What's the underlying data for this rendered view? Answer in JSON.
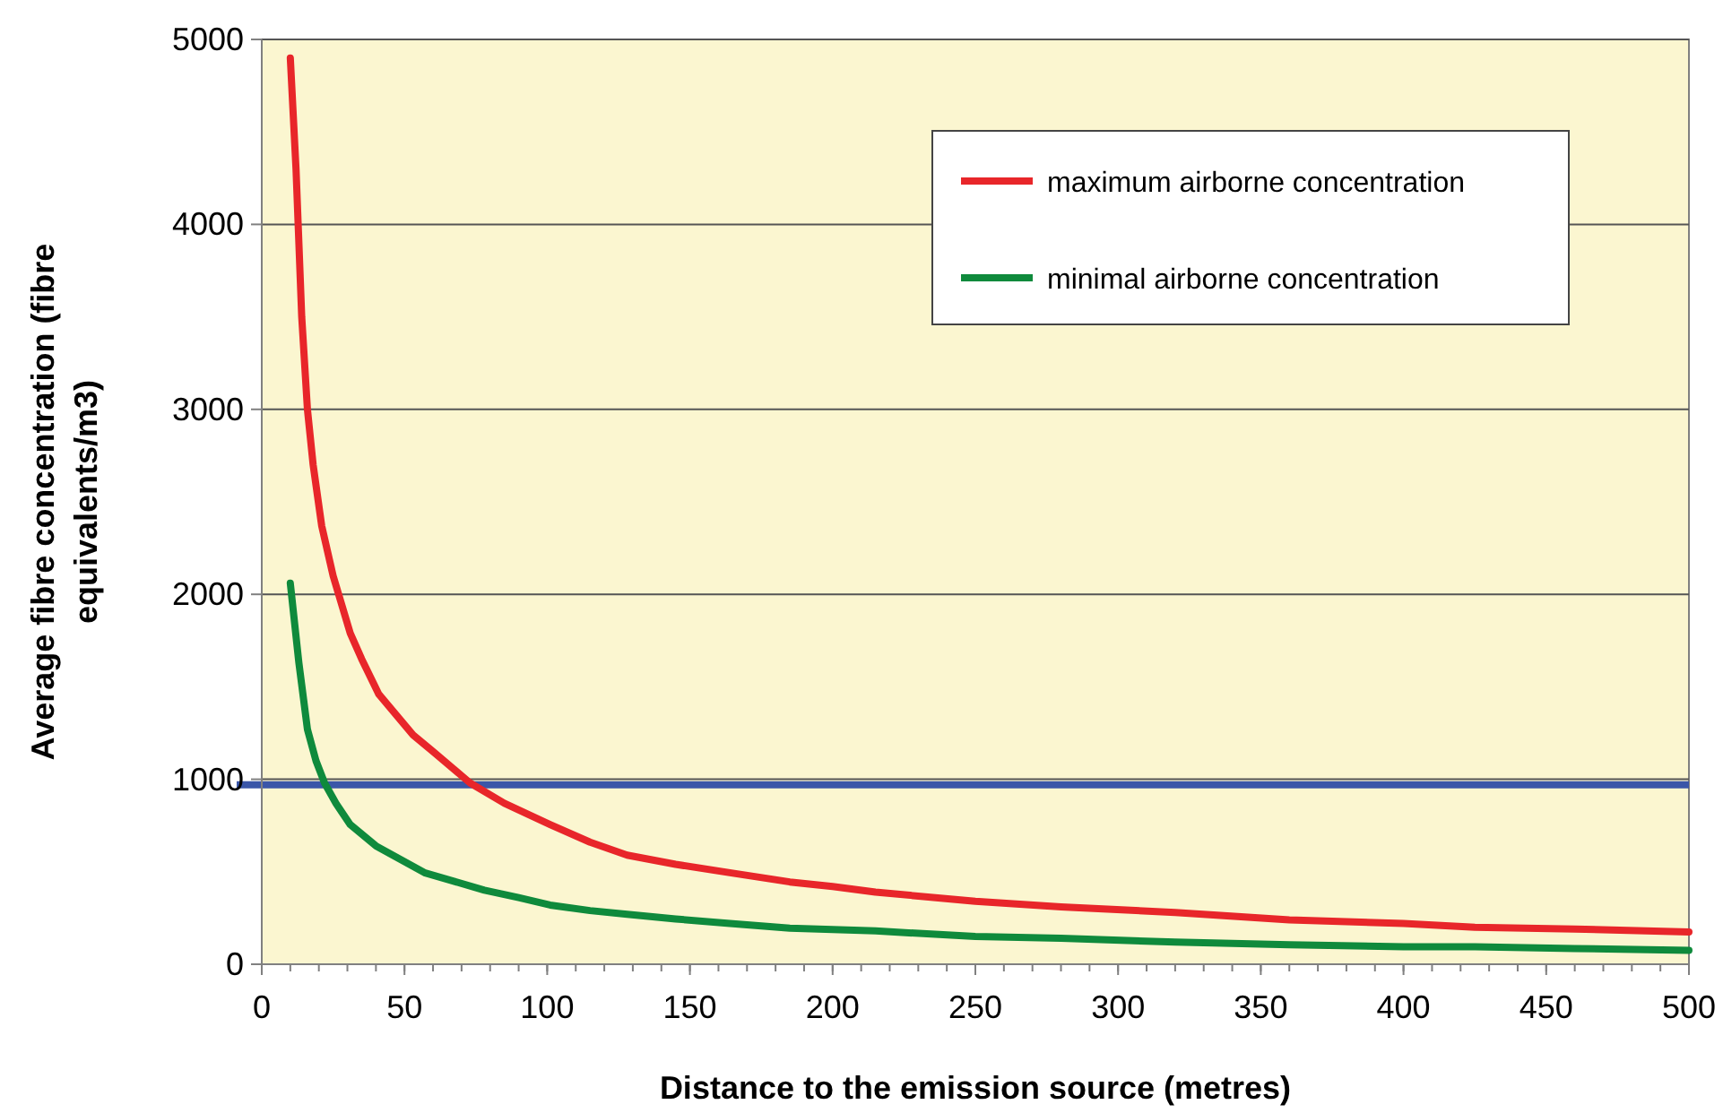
{
  "chart_data": {
    "type": "line",
    "xlabel": "Distance to the emission source (metres)",
    "ylabel": "Average fibre concentration (fibre equivalents/m3)",
    "xlim": [
      0,
      500
    ],
    "xticks": [
      0,
      50,
      100,
      150,
      200,
      250,
      300,
      350,
      400,
      450,
      500
    ],
    "ylim": [
      0,
      5000
    ],
    "yticks": [
      0,
      1000,
      2000,
      3000,
      4000,
      5000
    ],
    "grid": "y",
    "legend": "top right",
    "marker": "none",
    "line_style": "solid",
    "series": [
      {
        "name": "maximum airborne concentration",
        "color": "#e8262a",
        "x": [
          10,
          12,
          14,
          16,
          18,
          21,
          25,
          31,
          35,
          41,
          47,
          53,
          60,
          73,
          85,
          101,
          115,
          128,
          145,
          164,
          185,
          200,
          215,
          250,
          280,
          320,
          360,
          400,
          425,
          460,
          500
        ],
        "values": [
          4900,
          4300,
          3500,
          3000,
          2700,
          2370,
          2100,
          1790,
          1650,
          1460,
          1350,
          1240,
          1150,
          980,
          870,
          755,
          660,
          590,
          540,
          495,
          445,
          420,
          390,
          340,
          310,
          280,
          240,
          220,
          200,
          190,
          175
        ]
      },
      {
        "name": "minimal airborne concentration",
        "color": "#0f8a3c",
        "x": [
          10,
          13,
          16,
          19,
          22,
          26,
          31,
          40,
          47,
          57,
          67,
          78,
          90,
          101,
          115,
          128,
          145,
          164,
          185,
          215,
          250,
          280,
          320,
          360,
          400,
          425,
          460,
          500
        ],
        "values": [
          2060,
          1630,
          1270,
          1100,
          980,
          870,
          755,
          640,
          580,
          495,
          450,
          400,
          360,
          320,
          290,
          270,
          245,
          220,
          195,
          180,
          150,
          140,
          120,
          105,
          95,
          95,
          85,
          75
        ]
      }
    ],
    "ref_lines": [
      {
        "axis": "y",
        "value": 970,
        "color": "#3a56a8",
        "line_style": "solid"
      }
    ]
  }
}
